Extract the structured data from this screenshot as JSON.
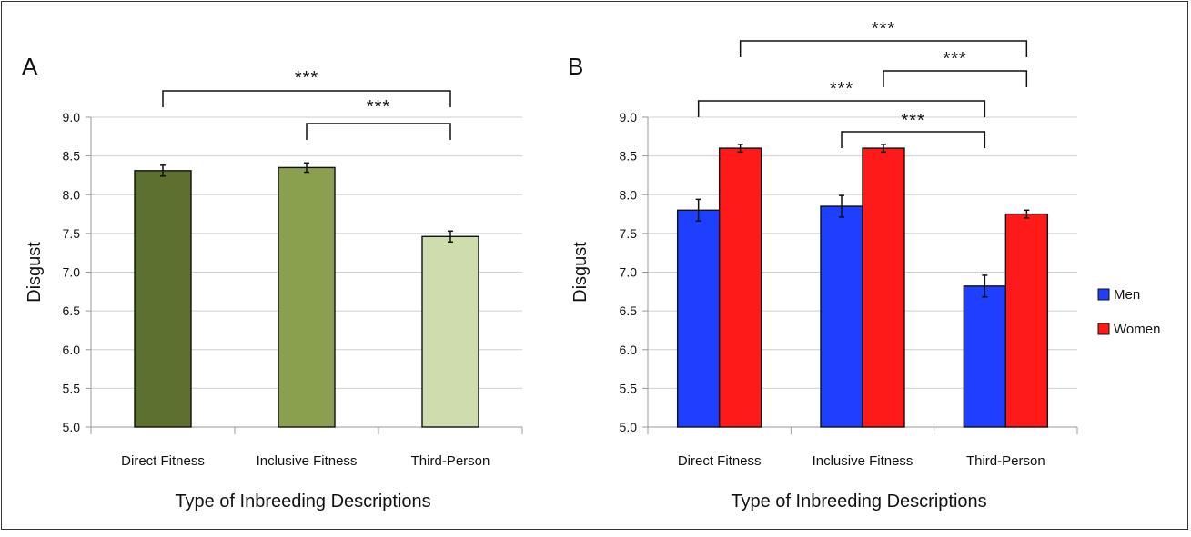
{
  "chart_data": [
    {
      "panel": "A",
      "type": "bar",
      "xlabel": "Type of Inbreeding Descriptions",
      "ylabel": "Disgust",
      "ylim": [
        5.0,
        9.0
      ],
      "yticks": [
        "5.0",
        "5.5",
        "6.0",
        "6.5",
        "7.0",
        "7.5",
        "8.0",
        "8.5",
        "9.0"
      ],
      "grid": true,
      "categories": [
        "Direct Fitness",
        "Inclusive Fitness",
        "Third-Person"
      ],
      "series": [
        {
          "values": [
            8.31,
            8.35,
            7.46
          ],
          "errors": [
            0.07,
            0.06,
            0.07
          ],
          "colors": [
            "#5e7030",
            "#8aa04e",
            "#cfdcae"
          ]
        }
      ],
      "annotations": [
        {
          "label": "***",
          "from": "Direct Fitness",
          "to": "Third-Person"
        },
        {
          "label": "***",
          "from": "Inclusive Fitness",
          "to": "Third-Person"
        }
      ]
    },
    {
      "panel": "B",
      "type": "bar",
      "xlabel": "Type of Inbreeding Descriptions",
      "ylabel": "Disgust",
      "ylim": [
        5.0,
        9.0
      ],
      "yticks": [
        "5.0",
        "5.5",
        "6.0",
        "6.5",
        "7.0",
        "7.5",
        "8.0",
        "8.5",
        "9.0"
      ],
      "grid": true,
      "categories": [
        "Direct Fitness",
        "Inclusive Fitness",
        "Third-Person"
      ],
      "legend_position": "right",
      "series": [
        {
          "name": "Men",
          "color": "#1f3fff",
          "values": [
            7.8,
            7.85,
            6.82
          ],
          "errors": [
            0.14,
            0.14,
            0.14
          ]
        },
        {
          "name": "Women",
          "color": "#ff1a1a",
          "values": [
            8.6,
            8.6,
            7.75
          ],
          "errors": [
            0.05,
            0.05,
            0.05
          ]
        }
      ],
      "annotations": [
        {
          "label": "***",
          "from": "Direct Fitness:Women",
          "to": "Third-Person:Women"
        },
        {
          "label": "***",
          "from": "Inclusive Fitness:Women",
          "to": "Third-Person:Women"
        },
        {
          "label": "***",
          "from": "Direct Fitness:Men",
          "to": "Third-Person:Men"
        },
        {
          "label": "***",
          "from": "Inclusive Fitness:Men",
          "to": "Third-Person:Men"
        }
      ]
    }
  ]
}
